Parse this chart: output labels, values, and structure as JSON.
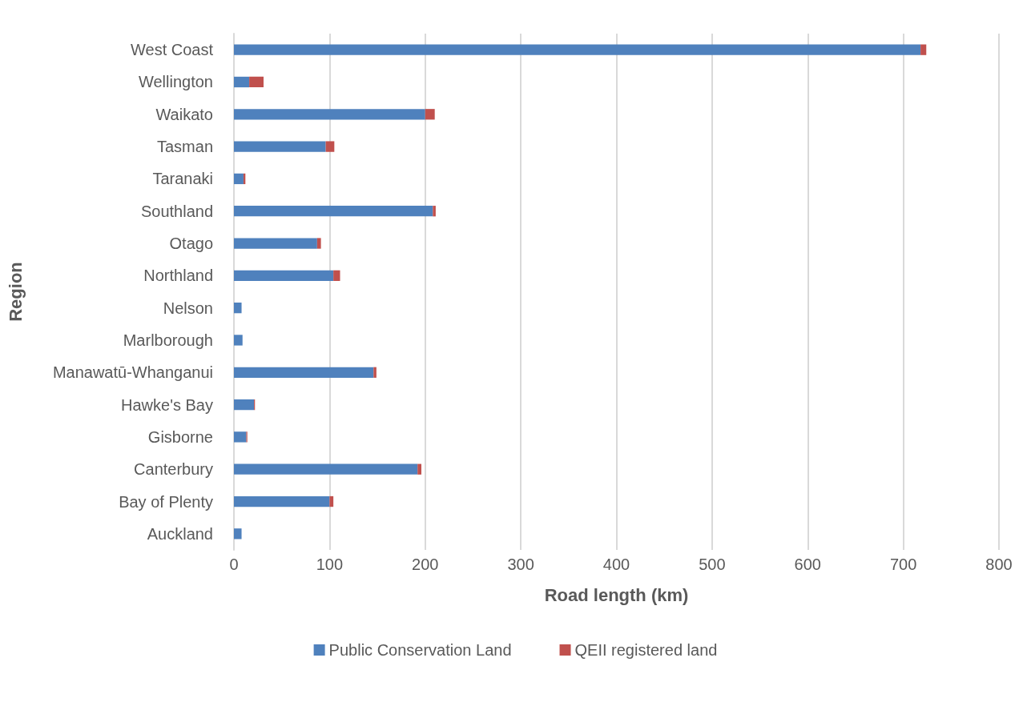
{
  "chart_data": {
    "type": "bar",
    "orientation": "horizontal",
    "stacked": true,
    "xlabel": "Road length (km)",
    "ylabel": "Region",
    "categories": [
      "West Coast",
      "Wellington",
      "Waikato",
      "Tasman",
      "Taranaki",
      "Southland",
      "Otago",
      "Northland",
      "Nelson",
      "Marlborough",
      "Manawatū-Whanganui",
      "Hawke's Bay",
      "Gisborne",
      "Canterbury",
      "Bay of Plenty",
      "Auckland"
    ],
    "series": [
      {
        "name": "Public Conservation Land",
        "color": "#4f81bd",
        "values": [
          718,
          16,
          200,
          96,
          10,
          208,
          87,
          104,
          8,
          9,
          146,
          21,
          13,
          192,
          100,
          8
        ]
      },
      {
        "name": "QEII registered land",
        "color": "#c0504d",
        "values": [
          6,
          15,
          10,
          9,
          2,
          3,
          4,
          7,
          null,
          null,
          3,
          1,
          1,
          4,
          4,
          null
        ]
      }
    ],
    "xlim": [
      0,
      800
    ],
    "xticks": [
      0,
      100,
      200,
      300,
      400,
      500,
      600,
      700,
      800
    ],
    "grid": "x",
    "legend": "bottom"
  }
}
